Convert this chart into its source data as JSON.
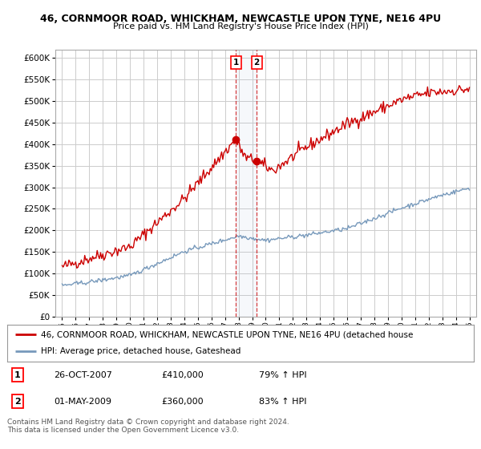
{
  "title1": "46, CORNMOOR ROAD, WHICKHAM, NEWCASTLE UPON TYNE, NE16 4PU",
  "title2": "Price paid vs. HM Land Registry's House Price Index (HPI)",
  "legend_red": "46, CORNMOOR ROAD, WHICKHAM, NEWCASTLE UPON TYNE, NE16 4PU (detached house",
  "legend_blue": "HPI: Average price, detached house, Gateshead",
  "sale1_date": "26-OCT-2007",
  "sale1_price": "£410,000",
  "sale1_hpi": "79% ↑ HPI",
  "sale1_x": 2007.81,
  "sale1_y": 410000,
  "sale2_date": "01-MAY-2009",
  "sale2_price": "£360,000",
  "sale2_hpi": "83% ↑ HPI",
  "sale2_x": 2009.33,
  "sale2_y": 360000,
  "footer": "Contains HM Land Registry data © Crown copyright and database right 2024.\nThis data is licensed under the Open Government Licence v3.0.",
  "ylim": [
    0,
    620000
  ],
  "xlim": [
    1994.5,
    2025.5
  ],
  "red_color": "#cc0000",
  "blue_color": "#7799bb",
  "background_color": "#ffffff",
  "grid_color": "#cccccc"
}
